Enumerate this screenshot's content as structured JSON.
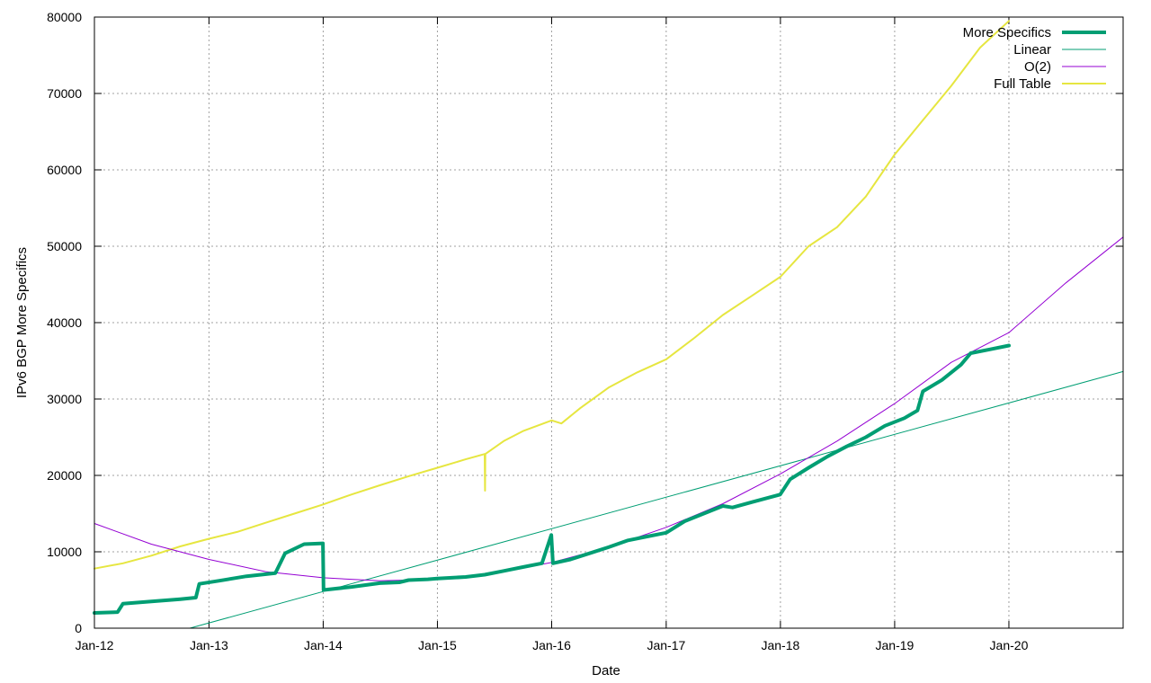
{
  "chart_data": {
    "type": "line",
    "title": "",
    "xlabel": "Date",
    "ylabel": "IPv6 BGP More Specifics",
    "x_axis_type": "date",
    "xlim": [
      "2012-01-01",
      "2020-12-31"
    ],
    "ylim": [
      0,
      80000
    ],
    "x_tick_labels": [
      "Jan-12",
      "Jan-13",
      "Jan-14",
      "Jan-15",
      "Jan-16",
      "Jan-17",
      "Jan-18",
      "Jan-19",
      "Jan-20"
    ],
    "y_tick_labels": [
      "0",
      "10000",
      "20000",
      "30000",
      "40000",
      "50000",
      "60000",
      "70000",
      "80000"
    ],
    "grid": true,
    "legend_position": "top-right",
    "series": [
      {
        "name": "More Specifics",
        "color": "#009e73",
        "x": [
          "2012-01-01",
          "2012-03-15",
          "2012-04-01",
          "2012-07-01",
          "2012-10-01",
          "2012-11-20",
          "2012-12-01",
          "2013-02-01",
          "2013-05-01",
          "2013-08-01",
          "2013-09-01",
          "2013-11-01",
          "2013-12-31",
          "2014-01-02",
          "2014-04-01",
          "2014-07-01",
          "2014-09-01",
          "2014-10-01",
          "2014-12-01",
          "2015-01-01",
          "2015-04-01",
          "2015-06-01",
          "2015-08-01",
          "2015-10-01",
          "2015-12-01",
          "2015-12-31",
          "2016-01-05",
          "2016-03-01",
          "2016-05-01",
          "2016-07-01",
          "2016-09-01",
          "2016-11-01",
          "2017-01-01",
          "2017-03-01",
          "2017-05-01",
          "2017-07-01",
          "2017-08-01",
          "2017-10-01",
          "2017-12-31",
          "2018-02-01",
          "2018-04-01",
          "2018-06-01",
          "2018-08-01",
          "2018-10-01",
          "2018-12-01",
          "2019-02-01",
          "2019-03-15",
          "2019-04-01",
          "2019-06-01",
          "2019-08-01",
          "2019-09-01",
          "2019-11-01",
          "2020-01-01"
        ],
        "y": [
          2000,
          2100,
          3200,
          3500,
          3800,
          4000,
          5800,
          6200,
          6800,
          7200,
          9800,
          11000,
          11100,
          5000,
          5400,
          5900,
          6000,
          6300,
          6400,
          6500,
          6700,
          7000,
          7500,
          8000,
          8500,
          12200,
          8500,
          9000,
          9800,
          10600,
          11500,
          12000,
          12500,
          14000,
          15000,
          16000,
          15800,
          16500,
          17500,
          19500,
          21000,
          22500,
          23800,
          25000,
          26500,
          27500,
          28500,
          31000,
          32500,
          34500,
          36000,
          36500,
          37000
        ]
      },
      {
        "name": "Linear",
        "color": "#009e73",
        "x": [
          "2012-11-01",
          "2020-12-31"
        ],
        "y": [
          0,
          33600
        ]
      },
      {
        "name": "O(2)",
        "color": "#9400d3",
        "x": [
          "2012-01-01",
          "2012-07-01",
          "2013-01-01",
          "2013-07-01",
          "2014-01-01",
          "2014-07-01",
          "2015-01-01",
          "2015-07-01",
          "2016-01-01",
          "2016-07-01",
          "2017-01-01",
          "2017-07-01",
          "2018-01-01",
          "2018-07-01",
          "2019-01-01",
          "2019-07-01",
          "2020-01-01",
          "2020-07-01",
          "2020-12-31"
        ],
        "y": [
          13700,
          11000,
          9000,
          7400,
          6600,
          6200,
          6400,
          7200,
          8600,
          10600,
          13200,
          16300,
          20200,
          24500,
          29400,
          34800,
          38700,
          45200,
          51200
        ]
      },
      {
        "name": "Full Table",
        "color": "#e6e640",
        "x": [
          "2012-01-01",
          "2012-04-01",
          "2012-07-01",
          "2012-10-01",
          "2013-01-01",
          "2013-04-01",
          "2013-07-01",
          "2013-10-01",
          "2014-01-01",
          "2014-04-01",
          "2014-07-01",
          "2014-10-01",
          "2015-01-01",
          "2015-04-01",
          "2015-06-01",
          "2015-06-02",
          "2015-06-03",
          "2015-08-01",
          "2015-10-01",
          "2016-01-01",
          "2016-02-01",
          "2016-04-01",
          "2016-07-01",
          "2016-10-01",
          "2017-01-01",
          "2017-04-01",
          "2017-07-01",
          "2017-10-01",
          "2018-01-01",
          "2018-04-01",
          "2018-07-01",
          "2018-10-01",
          "2019-01-01",
          "2019-04-01",
          "2019-07-01",
          "2019-10-01",
          "2020-01-01"
        ],
        "y": [
          7800,
          8500,
          9500,
          10700,
          11700,
          12600,
          13800,
          15000,
          16200,
          17500,
          18700,
          19900,
          21000,
          22100,
          22800,
          18000,
          22800,
          24500,
          25800,
          27200,
          26800,
          28800,
          31500,
          33500,
          35200,
          38000,
          41000,
          43500,
          46000,
          50000,
          52500,
          56500,
          62000,
          66500,
          71000,
          76000,
          79500
        ]
      }
    ]
  }
}
